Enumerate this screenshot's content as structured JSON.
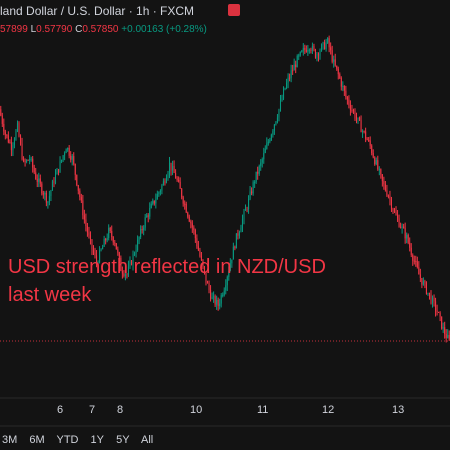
{
  "header": {
    "title": "land Dollar / U.S. Dollar · 1h · FXCM"
  },
  "ohlc": {
    "open_tail": "57899",
    "low_key": "L",
    "low_value": "0.57790",
    "close_key": "C",
    "close_value": "0.57850",
    "change": "+0.00163 (+0.28%)"
  },
  "annotation": {
    "line1": "USD strength reflected in NZD/USD",
    "line2": "last week"
  },
  "range_buttons": [
    "3M",
    "6M",
    "YTD",
    "1Y",
    "5Y",
    "All"
  ],
  "colors": {
    "up": "#089981",
    "down": "#f23645",
    "background": "#131313",
    "grid": "#1e1e1e",
    "price_line": "#f23645"
  },
  "chart_data": {
    "type": "candlestick",
    "title": "land Dollar / U.S. Dollar · 1h · FXCM",
    "xticks": [
      "6",
      "7",
      "8",
      "10",
      "11",
      "12",
      "13"
    ],
    "ylim": [
      0.0,
      1.0
    ],
    "grid": true,
    "close_path": [
      0.78,
      0.7,
      0.66,
      0.72,
      0.6,
      0.62,
      0.56,
      0.52,
      0.48,
      0.55,
      0.6,
      0.66,
      0.62,
      0.52,
      0.42,
      0.34,
      0.28,
      0.33,
      0.38,
      0.35,
      0.26,
      0.24,
      0.3,
      0.36,
      0.42,
      0.46,
      0.5,
      0.54,
      0.6,
      0.56,
      0.5,
      0.44,
      0.38,
      0.3,
      0.22,
      0.16,
      0.14,
      0.2,
      0.28,
      0.36,
      0.42,
      0.48,
      0.55,
      0.6,
      0.66,
      0.72,
      0.78,
      0.85,
      0.9,
      0.94,
      0.97,
      0.99,
      0.96,
      0.98,
      1.0,
      0.93,
      0.88,
      0.82,
      0.78,
      0.74,
      0.7,
      0.66,
      0.6,
      0.54,
      0.5,
      0.44,
      0.4,
      0.36,
      0.3,
      0.24,
      0.2,
      0.16,
      0.12,
      0.06,
      0.02
    ],
    "last_price_level": 0.04
  }
}
